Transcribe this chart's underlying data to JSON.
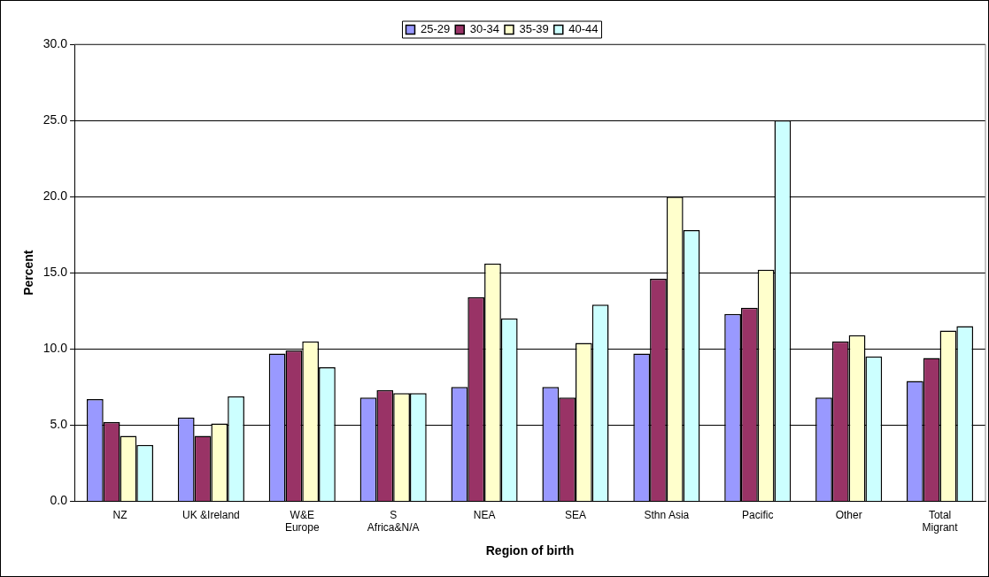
{
  "chart_data": {
    "type": "bar",
    "xlabel": "Region of birth",
    "ylabel": "Percent",
    "categories": [
      "NZ",
      "UK &Ireland",
      "W&E\nEurope",
      "S\nAfrica&N/A",
      "NEA",
      "SEA",
      "Sthn Asia",
      "Pacific",
      "Other",
      "Total\nMigrant"
    ],
    "series": [
      {
        "name": "25-29",
        "color": "#9999ff",
        "values": [
          6.7,
          5.5,
          9.7,
          6.8,
          7.5,
          7.5,
          9.7,
          12.3,
          6.8,
          7.9
        ]
      },
      {
        "name": "30-34",
        "color": "#993366",
        "values": [
          5.2,
          4.3,
          9.9,
          7.3,
          13.4,
          6.8,
          14.6,
          12.7,
          10.5,
          9.4
        ]
      },
      {
        "name": "35-39",
        "color": "#ffffcc",
        "values": [
          4.3,
          5.1,
          10.5,
          7.1,
          15.6,
          10.4,
          20.0,
          15.2,
          10.9,
          11.2
        ]
      },
      {
        "name": "40-44",
        "color": "#ccffff",
        "values": [
          3.7,
          6.9,
          8.8,
          7.1,
          12.0,
          12.9,
          17.8,
          25.0,
          9.5,
          11.5
        ]
      }
    ],
    "ylim": [
      0,
      30
    ],
    "yticks": [
      {
        "value": 0,
        "label": "0.0"
      },
      {
        "value": 5,
        "label": "5.0"
      },
      {
        "value": 10,
        "label": "10.0"
      },
      {
        "value": 15,
        "label": "15.0"
      },
      {
        "value": 20,
        "label": "20.0"
      },
      {
        "value": 25,
        "label": "25.0"
      },
      {
        "value": 30,
        "label": "30.0"
      }
    ],
    "grid": "y",
    "legend": "top"
  }
}
